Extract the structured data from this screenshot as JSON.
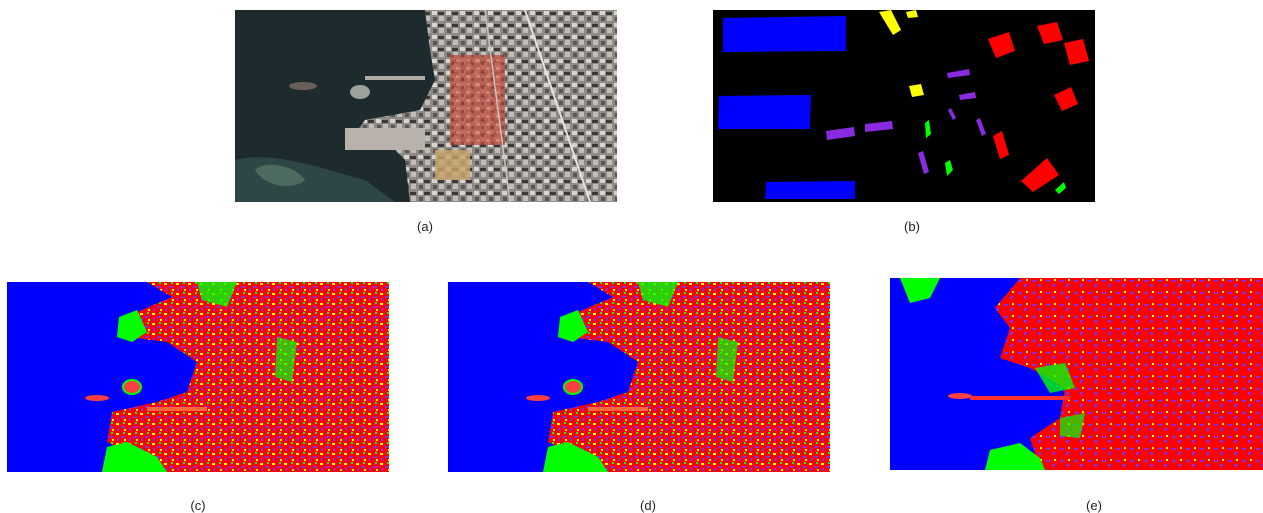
{
  "figure": {
    "panels": [
      {
        "id": "a",
        "caption": "(a)",
        "kind": "satellite-rgb-image"
      },
      {
        "id": "b",
        "caption": "(b)",
        "kind": "ground-truth-map"
      },
      {
        "id": "c",
        "caption": "(c)",
        "kind": "classification-map"
      },
      {
        "id": "d",
        "caption": "(d)",
        "kind": "classification-map"
      },
      {
        "id": "e",
        "caption": "(e)",
        "kind": "classification-map"
      }
    ],
    "class_colors": {
      "water": "#0000ff",
      "vegetation": "#00ff00",
      "built_up": "#ff0000",
      "shadow": "#8a2be2",
      "bare_soil": "#ffff00",
      "unlabeled": "#000000"
    }
  }
}
